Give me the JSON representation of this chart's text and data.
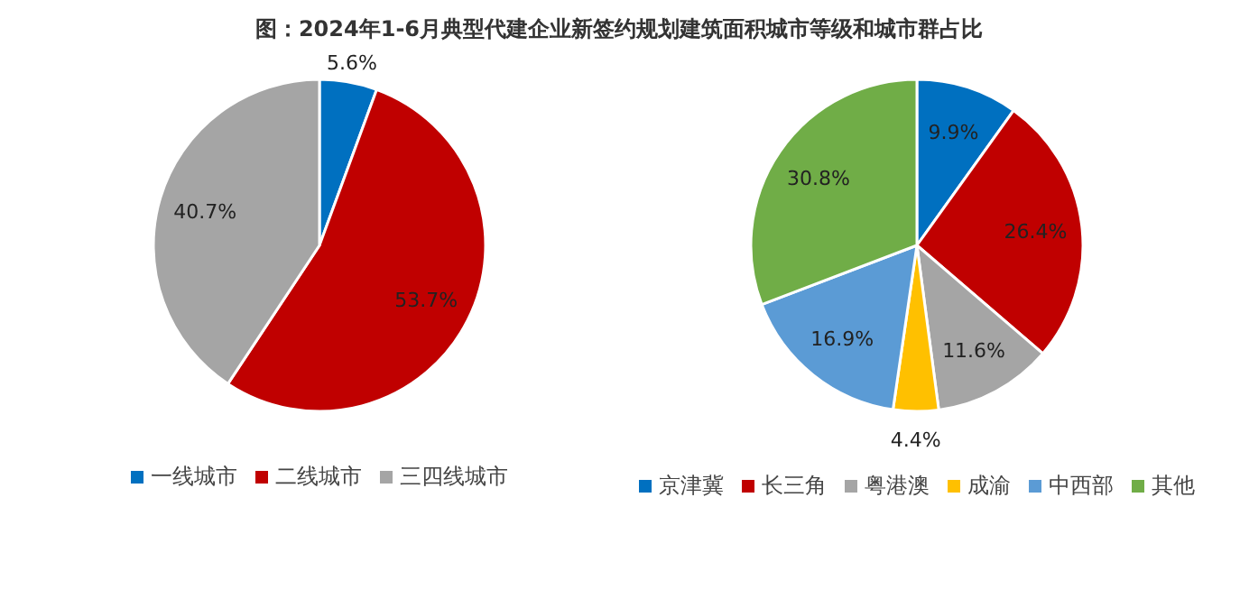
{
  "chart_data": [
    {
      "type": "pie",
      "title": "图：2024年1-6月典型代建企业新签约规划建筑面积城市等级和城市群占比",
      "legend": "bottom",
      "categories": [
        "一线城市",
        "二线城市",
        "三四线城市"
      ],
      "values": [
        5.6,
        53.7,
        40.7
      ],
      "value_labels": [
        "5.6%",
        "53.7%",
        "40.7%"
      ],
      "colors": [
        "#0070c0",
        "#c00000",
        "#a5a5a5"
      ]
    },
    {
      "type": "pie",
      "legend": "bottom",
      "categories": [
        "京津冀",
        "长三角",
        "粤港澳",
        "成渝",
        "中西部",
        "其他"
      ],
      "values": [
        9.9,
        26.4,
        11.6,
        4.4,
        16.9,
        30.8
      ],
      "value_labels": [
        "9.9%",
        "26.4%",
        "11.6%",
        "4.4%",
        "16.9%",
        "30.8%"
      ],
      "colors": [
        "#0070c0",
        "#c00000",
        "#a5a5a5",
        "#ffc000",
        "#5b9bd5",
        "#70ad47"
      ]
    }
  ]
}
